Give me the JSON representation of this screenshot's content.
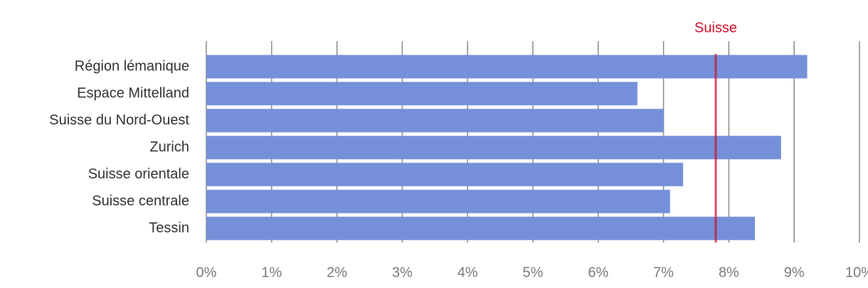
{
  "chart_data": {
    "type": "bar",
    "orientation": "horizontal",
    "categories": [
      "Région lémanique",
      "Espace Mittelland",
      "Suisse du Nord-Ouest",
      "Zurich",
      "Suisse orientale",
      "Suisse centrale",
      "Tessin"
    ],
    "values": [
      9.2,
      6.6,
      7.0,
      8.8,
      7.3,
      7.1,
      8.4
    ],
    "color": "#7590d9",
    "xlim": [
      0,
      10
    ],
    "xticks": [
      {
        "value": 0,
        "label": "0%"
      },
      {
        "value": 1,
        "label": "1%"
      },
      {
        "value": 2,
        "label": "2%"
      },
      {
        "value": 3,
        "label": "3%"
      },
      {
        "value": 4,
        "label": "4%"
      },
      {
        "value": 5,
        "label": "5%"
      },
      {
        "value": 6,
        "label": "6%"
      },
      {
        "value": 7,
        "label": "7%"
      },
      {
        "value": 8,
        "label": "8%"
      },
      {
        "value": 9,
        "label": "9%"
      },
      {
        "value": 10,
        "label": "10%"
      }
    ],
    "grid": true,
    "reference_line": {
      "value": 7.8,
      "label": "Suisse",
      "color": "#d0112b"
    }
  }
}
